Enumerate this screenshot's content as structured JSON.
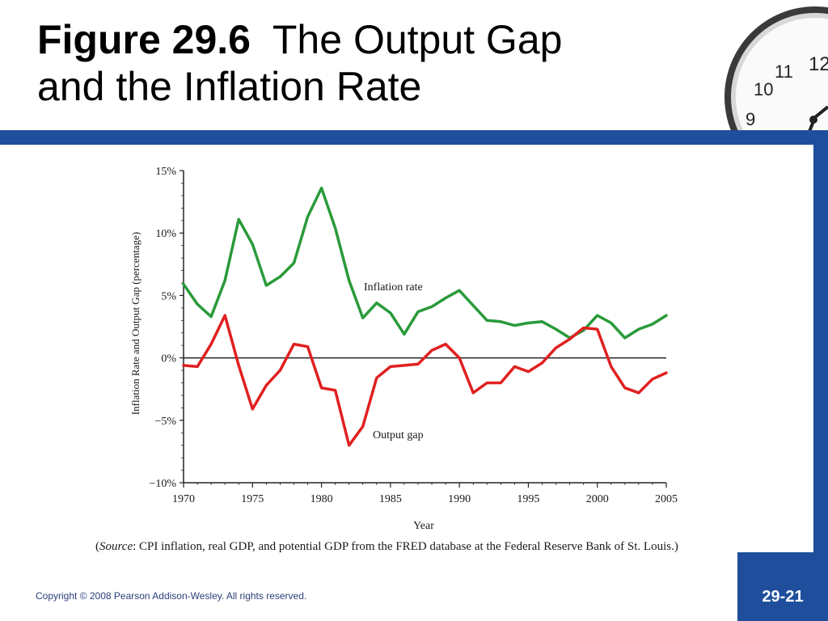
{
  "slide": {
    "title_bold": "Figure 29.6",
    "title_rest_line1": "The Output Gap",
    "title_line2": "and the Inflation Rate",
    "copyright": "Copyright © 2008 Pearson Addison-Wesley. All rights reserved.",
    "page_number": "29-21",
    "source_label": "Source",
    "source_open": "(",
    "source_text": ": CPI inflation, real GDP, and potential GDP from the FRED database at the Federal Reserve Bank of St. Louis.)",
    "clock_numbers": [
      "12",
      "11",
      "10",
      "9"
    ],
    "colors": {
      "band": "#1f4f9c",
      "inflation": "#2a9a3a",
      "output_gap": "#e02020"
    }
  },
  "chart_data": {
    "type": "line",
    "xlabel": "Year",
    "ylabel": "Inflation Rate and Output Gap (percentage)",
    "xlim": [
      1970,
      2005
    ],
    "ylim": [
      -10,
      15
    ],
    "x_ticks": [
      "1970",
      "1975",
      "1980",
      "1985",
      "1990",
      "1995",
      "2000",
      "2005"
    ],
    "y_ticks": [
      "15%",
      "10%",
      "5%",
      "0%",
      "−5%",
      "−10%"
    ],
    "y_tick_values": [
      15,
      10,
      5,
      0,
      -5,
      -10
    ],
    "zero_line": true,
    "x": [
      1970,
      1971,
      1972,
      1973,
      1974,
      1975,
      1976,
      1977,
      1978,
      1979,
      1980,
      1981,
      1982,
      1983,
      1984,
      1985,
      1986,
      1987,
      1988,
      1989,
      1990,
      1991,
      1992,
      1993,
      1994,
      1995,
      1996,
      1997,
      1998,
      1999,
      2000,
      2001,
      2002,
      2003,
      2004,
      2005
    ],
    "series": [
      {
        "name": "Inflation rate",
        "values": [
          5.9,
          4.3,
          3.3,
          6.2,
          11.1,
          9.1,
          5.8,
          6.5,
          7.6,
          11.3,
          13.6,
          10.4,
          6.2,
          3.2,
          4.4,
          3.6,
          1.9,
          3.7,
          4.1,
          4.8,
          5.4,
          4.2,
          3.0,
          2.9,
          2.6,
          2.8,
          2.9,
          2.3,
          1.6,
          2.2,
          3.4,
          2.8,
          1.6,
          2.3,
          2.7,
          3.4
        ]
      },
      {
        "name": "Output gap",
        "values": [
          -0.6,
          -0.7,
          1.1,
          3.4,
          -0.6,
          -4.1,
          -2.2,
          -1.0,
          1.1,
          0.9,
          -2.4,
          -2.6,
          -7.0,
          -5.5,
          -1.6,
          -0.7,
          -0.6,
          -0.5,
          0.6,
          1.1,
          0.0,
          -2.8,
          -2.0,
          -2.0,
          -0.7,
          -1.1,
          -0.4,
          0.8,
          1.5,
          2.4,
          2.3,
          -0.7,
          -2.4,
          -2.8,
          -1.7,
          -1.2
        ]
      }
    ]
  }
}
